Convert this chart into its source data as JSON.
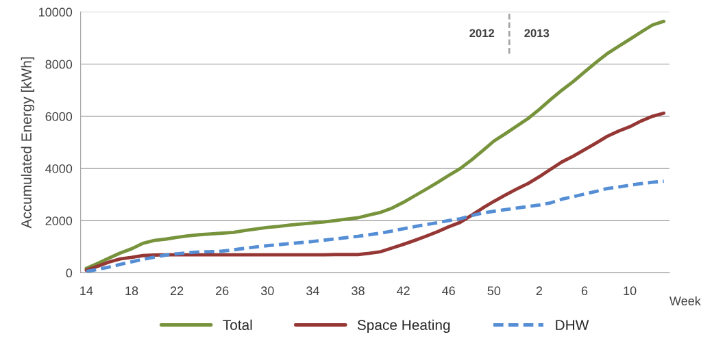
{
  "chart_data": {
    "type": "line",
    "ylabel": "Accumulated Energy [kWh]",
    "xlabel": "Week",
    "categories": [
      "14",
      null,
      null,
      null,
      "18",
      null,
      null,
      null,
      "22",
      null,
      null,
      null,
      "26",
      null,
      null,
      null,
      "30",
      null,
      null,
      null,
      "34",
      null,
      null,
      null,
      "38",
      null,
      null,
      null,
      "42",
      null,
      null,
      null,
      "46",
      null,
      null,
      null,
      "50",
      null,
      null,
      null,
      "2",
      null,
      null,
      null,
      "6",
      null,
      null,
      null,
      "10",
      null,
      null,
      null
    ],
    "series": [
      {
        "name": "Total",
        "color": "#77933c",
        "line_style": "solid",
        "values": [
          170,
          360,
          560,
          760,
          920,
          1130,
          1240,
          1290,
          1360,
          1420,
          1460,
          1490,
          1520,
          1550,
          1620,
          1680,
          1740,
          1780,
          1830,
          1870,
          1910,
          1950,
          2000,
          2060,
          2110,
          2220,
          2320,
          2480,
          2700,
          2950,
          3200,
          3460,
          3730,
          3990,
          4320,
          4680,
          5050,
          5330,
          5620,
          5910,
          6260,
          6640,
          7000,
          7330,
          7700,
          8060,
          8400,
          8680,
          8950,
          9230,
          9500,
          9640
        ]
      },
      {
        "name": "Space Heating",
        "color": "#953735",
        "line_style": "solid",
        "values": [
          100,
          250,
          410,
          530,
          590,
          660,
          680,
          690,
          690,
          690,
          690,
          690,
          690,
          690,
          690,
          690,
          690,
          690,
          690,
          690,
          690,
          690,
          700,
          700,
          700,
          750,
          810,
          950,
          1090,
          1240,
          1400,
          1570,
          1760,
          1930,
          2200,
          2480,
          2740,
          2980,
          3210,
          3420,
          3680,
          3970,
          4250,
          4470,
          4720,
          4970,
          5230,
          5430,
          5600,
          5820,
          6000,
          6120
        ]
      },
      {
        "name": "DHW",
        "color": "#558ed5",
        "line_style": "dashed",
        "values": [
          50,
          130,
          220,
          320,
          420,
          520,
          600,
          680,
          730,
          770,
          800,
          810,
          830,
          880,
          940,
          990,
          1040,
          1080,
          1120,
          1160,
          1200,
          1250,
          1300,
          1350,
          1400,
          1460,
          1520,
          1600,
          1690,
          1770,
          1850,
          1920,
          2000,
          2070,
          2190,
          2290,
          2360,
          2420,
          2480,
          2540,
          2600,
          2680,
          2820,
          2920,
          3020,
          3120,
          3230,
          3290,
          3360,
          3420,
          3470,
          3510
        ]
      }
    ],
    "ylim": [
      0,
      10000
    ],
    "yticks": [
      0,
      2000,
      4000,
      6000,
      8000,
      10000
    ],
    "grid": "y",
    "legend": "bottom",
    "marker": "none",
    "annotations": [
      "2012",
      "2013"
    ]
  }
}
